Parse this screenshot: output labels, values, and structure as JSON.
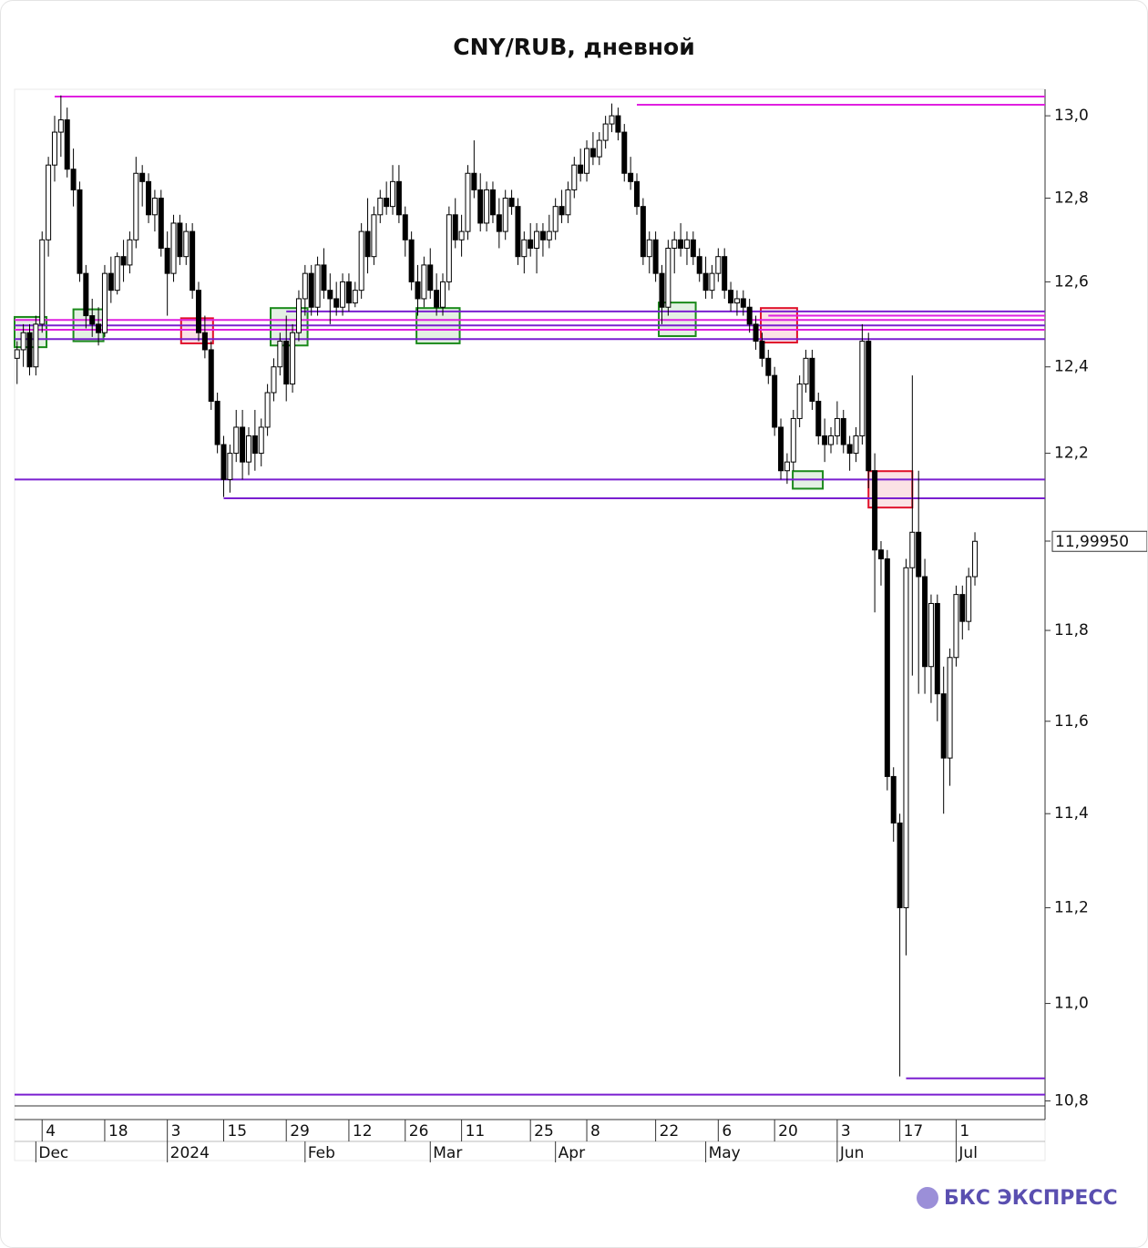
{
  "chart_data": {
    "type": "candlestick",
    "title": "CNY/RUB, дневной",
    "watermark": "БКС ЭКСПРЕСС",
    "log_scale": true,
    "ylim": [
      10.79,
      13.065
    ],
    "xlim": [
      -0.4,
      164.2
    ],
    "yticks": [
      {
        "value": 13,
        "label": "13,0"
      },
      {
        "value": 12.8,
        "label": "12,8"
      },
      {
        "value": 12.6,
        "label": "12,6"
      },
      {
        "value": 12.4,
        "label": "12,4"
      },
      {
        "value": 12.2,
        "label": "12,2"
      },
      {
        "value": 12,
        "label": "12,0"
      },
      {
        "value": 11.8,
        "label": "11,8"
      },
      {
        "value": 11.6,
        "label": "11,6"
      },
      {
        "value": 11.4,
        "label": "11,4"
      },
      {
        "value": 11.2,
        "label": "11,2"
      },
      {
        "value": 11,
        "label": "11,0"
      },
      {
        "value": 10.8,
        "label": "10,8"
      }
    ],
    "xticks": [
      {
        "value": 4,
        "label": "4"
      },
      {
        "value": 14,
        "label": "18"
      },
      {
        "value": 24,
        "label": "3"
      },
      {
        "value": 33,
        "label": "15"
      },
      {
        "value": 43,
        "label": "29"
      },
      {
        "value": 53,
        "label": "12"
      },
      {
        "value": 62,
        "label": "26"
      },
      {
        "value": 71,
        "label": "11"
      },
      {
        "value": 82,
        "label": "25"
      },
      {
        "value": 91,
        "label": "8"
      },
      {
        "value": 102,
        "label": "22"
      },
      {
        "value": 112,
        "label": "6"
      },
      {
        "value": 121,
        "label": "20"
      },
      {
        "value": 131,
        "label": "3"
      },
      {
        "value": 141,
        "label": "17"
      },
      {
        "value": 150,
        "label": "1"
      }
    ],
    "month_ticks": [
      {
        "value": 3,
        "label": "Dec"
      },
      {
        "value": 24,
        "label": "2024"
      },
      {
        "value": 46,
        "label": "Feb"
      },
      {
        "value": 66,
        "label": "Mar"
      },
      {
        "value": 86,
        "label": "Apr"
      },
      {
        "value": 110,
        "label": "May"
      },
      {
        "value": 131,
        "label": "Jun"
      },
      {
        "value": 150,
        "label": "Jul"
      }
    ],
    "last_price": {
      "value": 11.9995,
      "label": "11,99950"
    },
    "up_color": "#ffffff",
    "down_color": "#000000",
    "levels": [
      {
        "value": 13.047,
        "start": 6,
        "color": "#e020e0"
      },
      {
        "value": 13.027,
        "start": 99,
        "color": "#e020e0"
      },
      {
        "value": 12.53,
        "start": 43,
        "color": "#7a1fd0"
      },
      {
        "value": 12.52,
        "start": 120,
        "color": "#e020e0"
      },
      {
        "value": 12.51,
        "start": -0.4,
        "color": "#e020e0"
      },
      {
        "value": 12.497,
        "start": -0.4,
        "color": "#7a1fd0"
      },
      {
        "value": 12.487,
        "start": -0.4,
        "color": "#e020e0"
      },
      {
        "value": 12.465,
        "start": -0.4,
        "color": "#7a1fd0"
      },
      {
        "value": 12.14,
        "start": -0.4,
        "color": "#7a1fd0"
      },
      {
        "value": 12.097,
        "start": 33,
        "color": "#7a1fd0"
      },
      {
        "value": 10.846,
        "start": 142,
        "color": "#7a1fd0"
      },
      {
        "value": 10.813,
        "start": -0.4,
        "color": "#7a1fd0"
      }
    ],
    "boxes": [
      {
        "x": [
          -0.4,
          4.7
        ],
        "y": [
          12.446,
          12.517
        ],
        "color": "#1a8a1a"
      },
      {
        "x": [
          9,
          13.8
        ],
        "y": [
          12.46,
          12.535
        ],
        "color": "#1a8a1a"
      },
      {
        "x": [
          26.2,
          31.3
        ],
        "y": [
          12.455,
          12.514
        ],
        "color": "#e0102a"
      },
      {
        "x": [
          40.5,
          46.4
        ],
        "y": [
          12.45,
          12.538
        ],
        "color": "#1a8a1a"
      },
      {
        "x": [
          63.8,
          70.7
        ],
        "y": [
          12.455,
          12.538
        ],
        "color": "#1a8a1a"
      },
      {
        "x": [
          102.5,
          108.4
        ],
        "y": [
          12.472,
          12.551
        ],
        "color": "#1a8a1a"
      },
      {
        "x": [
          118.8,
          124.6
        ],
        "y": [
          12.457,
          12.538
        ],
        "color": "#e0102a"
      },
      {
        "x": [
          123.9,
          128.7
        ],
        "y": [
          12.119,
          12.159
        ],
        "color": "#1a8a1a"
      },
      {
        "x": [
          136,
          143
        ],
        "y": [
          12.076,
          12.159
        ],
        "color": "#e0102a"
      }
    ],
    "ohlc": [
      [
        12.42,
        12.46,
        12.36,
        12.44
      ],
      [
        12.44,
        12.5,
        12.4,
        12.48
      ],
      [
        12.48,
        12.5,
        12.38,
        12.4
      ],
      [
        12.4,
        12.52,
        12.38,
        12.5
      ],
      [
        12.5,
        12.72,
        12.48,
        12.7
      ],
      [
        12.7,
        12.9,
        12.66,
        12.88
      ],
      [
        12.88,
        13,
        12.84,
        12.96
      ],
      [
        12.96,
        13.05,
        12.9,
        12.99
      ],
      [
        12.99,
        13.02,
        12.85,
        12.87
      ],
      [
        12.87,
        12.92,
        12.78,
        12.82
      ],
      [
        12.82,
        12.84,
        12.6,
        12.62
      ],
      [
        12.62,
        12.64,
        12.49,
        12.52
      ],
      [
        12.52,
        12.56,
        12.47,
        12.5
      ],
      [
        12.5,
        12.54,
        12.45,
        12.48
      ],
      [
        12.48,
        12.64,
        12.47,
        12.62
      ],
      [
        12.62,
        12.66,
        12.55,
        12.58
      ],
      [
        12.58,
        12.67,
        12.57,
        12.66
      ],
      [
        12.66,
        12.7,
        12.6,
        12.64
      ],
      [
        12.64,
        12.72,
        12.62,
        12.7
      ],
      [
        12.7,
        12.9,
        12.68,
        12.86
      ],
      [
        12.86,
        12.88,
        12.78,
        12.84
      ],
      [
        12.84,
        12.86,
        12.74,
        12.76
      ],
      [
        12.76,
        12.82,
        12.72,
        12.8
      ],
      [
        12.8,
        12.82,
        12.66,
        12.68
      ],
      [
        12.68,
        12.72,
        12.52,
        12.62
      ],
      [
        12.62,
        12.76,
        12.6,
        12.74
      ],
      [
        12.74,
        12.76,
        12.64,
        12.66
      ],
      [
        12.66,
        12.74,
        12.64,
        12.72
      ],
      [
        12.72,
        12.74,
        12.56,
        12.58
      ],
      [
        12.58,
        12.6,
        12.46,
        12.48
      ],
      [
        12.48,
        12.52,
        12.42,
        12.44
      ],
      [
        12.44,
        12.46,
        12.3,
        12.32
      ],
      [
        12.32,
        12.34,
        12.2,
        12.22
      ],
      [
        12.22,
        12.24,
        12.1,
        12.14
      ],
      [
        12.14,
        12.22,
        12.11,
        12.2
      ],
      [
        12.2,
        12.3,
        12.18,
        12.26
      ],
      [
        12.26,
        12.3,
        12.14,
        12.18
      ],
      [
        12.18,
        12.26,
        12.15,
        12.24
      ],
      [
        12.24,
        12.3,
        12.16,
        12.2
      ],
      [
        12.2,
        12.28,
        12.17,
        12.26
      ],
      [
        12.26,
        12.36,
        12.24,
        12.34
      ],
      [
        12.34,
        12.42,
        12.32,
        12.4
      ],
      [
        12.4,
        12.48,
        12.38,
        12.46
      ],
      [
        12.46,
        12.52,
        12.32,
        12.36
      ],
      [
        12.36,
        12.5,
        12.34,
        12.48
      ],
      [
        12.48,
        12.58,
        12.46,
        12.56
      ],
      [
        12.56,
        12.64,
        12.52,
        12.62
      ],
      [
        12.62,
        12.64,
        12.52,
        12.54
      ],
      [
        12.54,
        12.66,
        12.52,
        12.64
      ],
      [
        12.64,
        12.68,
        12.56,
        12.58
      ],
      [
        12.58,
        12.62,
        12.5,
        12.56
      ],
      [
        12.56,
        12.6,
        12.52,
        12.54
      ],
      [
        12.54,
        12.62,
        12.52,
        12.6
      ],
      [
        12.6,
        12.62,
        12.53,
        12.55
      ],
      [
        12.55,
        12.6,
        12.54,
        12.58
      ],
      [
        12.58,
        12.74,
        12.56,
        12.72
      ],
      [
        12.72,
        12.8,
        12.62,
        12.66
      ],
      [
        12.66,
        12.78,
        12.64,
        12.76
      ],
      [
        12.76,
        12.82,
        12.74,
        12.8
      ],
      [
        12.8,
        12.84,
        12.76,
        12.78
      ],
      [
        12.78,
        12.88,
        12.76,
        12.84
      ],
      [
        12.84,
        12.88,
        12.74,
        12.76
      ],
      [
        12.76,
        12.78,
        12.66,
        12.7
      ],
      [
        12.7,
        12.72,
        12.58,
        12.6
      ],
      [
        12.6,
        12.64,
        12.52,
        12.56
      ],
      [
        12.56,
        12.66,
        12.54,
        12.64
      ],
      [
        12.64,
        12.68,
        12.56,
        12.58
      ],
      [
        12.58,
        12.62,
        12.52,
        12.54
      ],
      [
        12.54,
        12.62,
        12.52,
        12.6
      ],
      [
        12.6,
        12.78,
        12.58,
        12.76
      ],
      [
        12.76,
        12.8,
        12.68,
        12.7
      ],
      [
        12.7,
        12.76,
        12.66,
        12.72
      ],
      [
        12.72,
        12.88,
        12.7,
        12.86
      ],
      [
        12.86,
        12.94,
        12.8,
        12.82
      ],
      [
        12.82,
        12.86,
        12.72,
        12.74
      ],
      [
        12.74,
        12.84,
        12.72,
        12.82
      ],
      [
        12.82,
        12.84,
        12.74,
        12.76
      ],
      [
        12.76,
        12.8,
        12.68,
        12.72
      ],
      [
        12.72,
        12.82,
        12.7,
        12.8
      ],
      [
        12.8,
        12.82,
        12.76,
        12.78
      ],
      [
        12.78,
        12.8,
        12.64,
        12.66
      ],
      [
        12.66,
        12.72,
        12.62,
        12.7
      ],
      [
        12.7,
        12.74,
        12.66,
        12.68
      ],
      [
        12.68,
        12.74,
        12.62,
        12.72
      ],
      [
        12.72,
        12.74,
        12.66,
        12.7
      ],
      [
        12.7,
        12.76,
        12.68,
        12.72
      ],
      [
        12.72,
        12.8,
        12.7,
        12.78
      ],
      [
        12.78,
        12.82,
        12.74,
        12.76
      ],
      [
        12.76,
        12.84,
        12.74,
        12.82
      ],
      [
        12.82,
        12.9,
        12.8,
        12.88
      ],
      [
        12.88,
        12.92,
        12.84,
        12.86
      ],
      [
        12.86,
        12.94,
        12.84,
        12.92
      ],
      [
        12.92,
        12.96,
        12.88,
        12.9
      ],
      [
        12.9,
        12.96,
        12.88,
        12.94
      ],
      [
        12.94,
        13,
        12.92,
        12.98
      ],
      [
        12.98,
        13.03,
        12.96,
        13
      ],
      [
        13,
        13.02,
        12.94,
        12.96
      ],
      [
        12.96,
        12.98,
        12.84,
        12.86
      ],
      [
        12.86,
        12.9,
        12.82,
        12.84
      ],
      [
        12.84,
        12.86,
        12.76,
        12.78
      ],
      [
        12.78,
        12.8,
        12.64,
        12.66
      ],
      [
        12.66,
        12.72,
        12.62,
        12.7
      ],
      [
        12.7,
        12.72,
        12.6,
        12.62
      ],
      [
        12.62,
        12.64,
        12.5,
        12.54
      ],
      [
        12.54,
        12.7,
        12.52,
        12.68
      ],
      [
        12.68,
        12.72,
        12.62,
        12.7
      ],
      [
        12.7,
        12.74,
        12.66,
        12.68
      ],
      [
        12.68,
        12.72,
        12.64,
        12.7
      ],
      [
        12.7,
        12.72,
        12.64,
        12.66
      ],
      [
        12.66,
        12.68,
        12.6,
        12.62
      ],
      [
        12.62,
        12.66,
        12.56,
        12.58
      ],
      [
        12.58,
        12.64,
        12.56,
        12.62
      ],
      [
        12.62,
        12.68,
        12.6,
        12.66
      ],
      [
        12.66,
        12.68,
        12.56,
        12.58
      ],
      [
        12.58,
        12.6,
        12.53,
        12.55
      ],
      [
        12.55,
        12.58,
        12.52,
        12.56
      ],
      [
        12.56,
        12.58,
        12.52,
        12.54
      ],
      [
        12.54,
        12.56,
        12.48,
        12.5
      ],
      [
        12.5,
        12.52,
        12.44,
        12.46
      ],
      [
        12.46,
        12.48,
        12.4,
        12.42
      ],
      [
        12.42,
        12.44,
        12.36,
        12.38
      ],
      [
        12.38,
        12.4,
        12.24,
        12.26
      ],
      [
        12.26,
        12.28,
        12.14,
        12.16
      ],
      [
        12.16,
        12.2,
        12.13,
        12.18
      ],
      [
        12.18,
        12.3,
        12.16,
        12.28
      ],
      [
        12.28,
        12.38,
        12.26,
        12.36
      ],
      [
        12.36,
        12.44,
        12.34,
        12.42
      ],
      [
        12.42,
        12.44,
        12.3,
        12.32
      ],
      [
        12.32,
        12.34,
        12.22,
        12.24
      ],
      [
        12.24,
        12.28,
        12.18,
        12.22
      ],
      [
        12.22,
        12.26,
        12.2,
        12.24
      ],
      [
        12.24,
        12.32,
        12.22,
        12.28
      ],
      [
        12.28,
        12.3,
        12.2,
        12.22
      ],
      [
        12.22,
        12.24,
        12.16,
        12.2
      ],
      [
        12.2,
        12.26,
        12.18,
        12.24
      ],
      [
        12.24,
        12.5,
        12.22,
        12.46
      ],
      [
        12.46,
        12.48,
        12.12,
        12.16
      ],
      [
        12.16,
        12.2,
        11.84,
        11.98
      ],
      [
        11.98,
        12,
        11.9,
        11.96
      ],
      [
        11.96,
        11.98,
        11.45,
        11.48
      ],
      [
        11.48,
        11.5,
        11.34,
        11.38
      ],
      [
        11.38,
        11.4,
        10.85,
        11.2
      ],
      [
        11.2,
        11.96,
        11.1,
        11.94
      ],
      [
        11.94,
        12.38,
        11.7,
        12.02
      ],
      [
        12.02,
        12.16,
        11.66,
        11.92
      ],
      [
        11.92,
        11.96,
        11.66,
        11.72
      ],
      [
        11.72,
        11.88,
        11.64,
        11.86
      ],
      [
        11.86,
        11.88,
        11.6,
        11.66
      ],
      [
        11.66,
        11.72,
        11.4,
        11.52
      ],
      [
        11.52,
        11.76,
        11.46,
        11.74
      ],
      [
        11.74,
        11.9,
        11.72,
        11.88
      ],
      [
        11.88,
        11.9,
        11.78,
        11.82
      ],
      [
        11.82,
        11.94,
        11.8,
        11.92
      ],
      [
        11.92,
        12.02,
        11.9,
        11.9995
      ]
    ]
  }
}
